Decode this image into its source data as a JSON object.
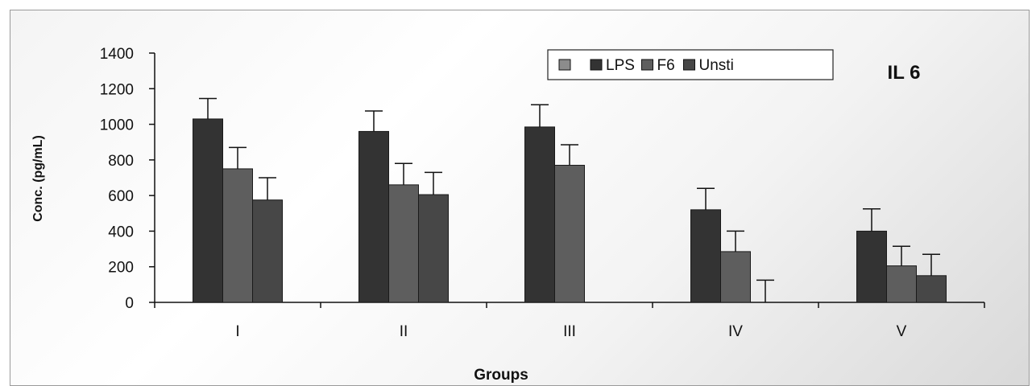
{
  "chart_data": {
    "type": "bar",
    "title": "IL 6",
    "xlabel": "Groups",
    "ylabel": "Conc. (pg/mL)",
    "ylim": [
      0,
      1400
    ],
    "yticks": [
      "0",
      "200",
      "400",
      "600",
      "800",
      "1000",
      "1200",
      "1400"
    ],
    "categories": [
      "I",
      "II",
      "III",
      "IV",
      "V"
    ],
    "grid": false,
    "legend_position": "top-right",
    "legend_items": [
      "",
      "LPS",
      "F6",
      "Unsti"
    ],
    "series": [
      {
        "name": "LPS",
        "values": [
          1030,
          960,
          985,
          520,
          400
        ],
        "errors": [
          115,
          115,
          125,
          120,
          125
        ],
        "color": "#333333"
      },
      {
        "name": "F6",
        "values": [
          750,
          660,
          770,
          285,
          205
        ],
        "errors": [
          120,
          120,
          115,
          115,
          110
        ],
        "color": "#5e5e5e"
      },
      {
        "name": "Unsti",
        "values": [
          575,
          605,
          null,
          0,
          150
        ],
        "errors": [
          125,
          125,
          null,
          125,
          120
        ],
        "color": "#474747"
      }
    ]
  }
}
